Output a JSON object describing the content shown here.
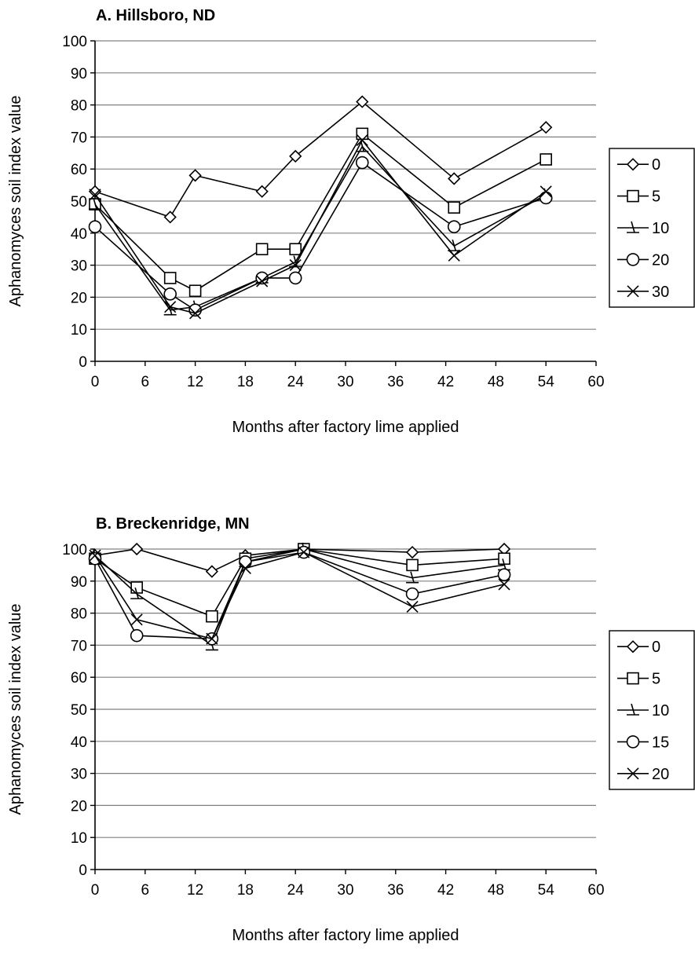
{
  "chart_data": [
    {
      "type": "line",
      "title": "A. Hillsboro, ND",
      "xlabel": "Months after factory lime applied",
      "ylabel": "Aphanomyces soil index value",
      "xlim": [
        0,
        60
      ],
      "ylim": [
        0,
        100
      ],
      "xticks": [
        0,
        6,
        12,
        18,
        24,
        30,
        36,
        42,
        48,
        54,
        60
      ],
      "yticks": [
        0,
        10,
        20,
        30,
        40,
        50,
        60,
        70,
        80,
        90,
        100
      ],
      "grid": "horizontal",
      "legend_position": "right",
      "x": [
        0,
        9,
        12,
        20,
        24,
        32,
        43,
        54
      ],
      "series": [
        {
          "name": "0",
          "marker": "diamond",
          "values": [
            53,
            45,
            58,
            53,
            64,
            81,
            57,
            73
          ]
        },
        {
          "name": "5",
          "marker": "square",
          "values": [
            49,
            26,
            22,
            35,
            35,
            71,
            48,
            63
          ]
        },
        {
          "name": "10",
          "marker": "tri",
          "values": [
            49,
            16,
            17,
            26,
            31,
            67,
            36,
            52
          ]
        },
        {
          "name": "20",
          "marker": "circle",
          "values": [
            42,
            21,
            16,
            26,
            26,
            62,
            42,
            51
          ]
        },
        {
          "name": "30",
          "marker": "x",
          "values": [
            52,
            17,
            15,
            25,
            30,
            69,
            33,
            53
          ]
        }
      ]
    },
    {
      "type": "line",
      "title": "B. Breckenridge, MN",
      "xlabel": "Months after factory lime applied",
      "ylabel": "Aphanomyces soil index value",
      "xlim": [
        0,
        60
      ],
      "ylim": [
        0,
        100
      ],
      "xticks": [
        0,
        6,
        12,
        18,
        24,
        30,
        36,
        42,
        48,
        54,
        60
      ],
      "yticks": [
        0,
        10,
        20,
        30,
        40,
        50,
        60,
        70,
        80,
        90,
        100
      ],
      "grid": "horizontal",
      "legend_position": "right",
      "x": [
        0,
        5,
        14,
        18,
        25,
        38,
        49
      ],
      "series": [
        {
          "name": "0",
          "marker": "diamond",
          "values": [
            98,
            100,
            93,
            98,
            100,
            99,
            100
          ]
        },
        {
          "name": "5",
          "marker": "square",
          "values": [
            97,
            88,
            79,
            97,
            100,
            95,
            97
          ]
        },
        {
          "name": "10",
          "marker": "tri",
          "values": [
            98,
            86,
            70,
            96,
            100,
            91,
            95
          ]
        },
        {
          "name": "15",
          "marker": "circle",
          "values": [
            97,
            73,
            72,
            96,
            99,
            86,
            92
          ]
        },
        {
          "name": "20",
          "marker": "x",
          "values": [
            98,
            78,
            72,
            94,
            99,
            82,
            89
          ]
        }
      ]
    }
  ]
}
